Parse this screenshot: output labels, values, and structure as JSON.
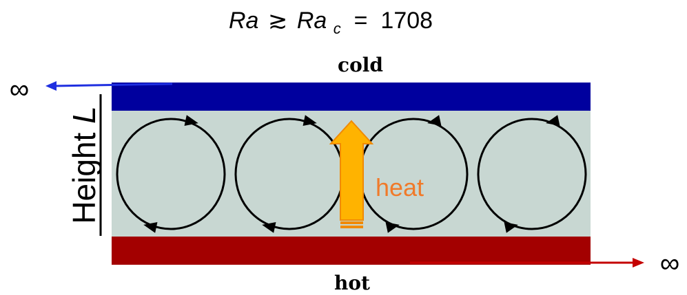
{
  "equation": {
    "lhs": "Ra",
    "relation": "≳",
    "rhs": "Ra",
    "rhs_subscript": "c",
    "equals": " = ",
    "value": "1708"
  },
  "labels": {
    "top": "cold",
    "bottom": "hot",
    "side_prefix": "Height ",
    "side_var": "L",
    "heat": "heat",
    "infinity_left": "∞",
    "infinity_right": "∞"
  },
  "colors": {
    "cold_plate": "#00009e",
    "hot_plate": "#a30000",
    "fluid": "#c8d7d2",
    "heat_arrow": "#ffb300",
    "heat_arrow_edge": "#f08a00",
    "heat_text": "#f07a2a",
    "left_arrow": "#1f2fe0",
    "right_arrow": "#c40000"
  },
  "convection_cells": [
    {
      "name": "cell-1",
      "direction": "clockwise"
    },
    {
      "name": "cell-2",
      "direction": "clockwise"
    },
    {
      "name": "cell-3",
      "direction": "counterclockwise"
    },
    {
      "name": "cell-4",
      "direction": "counterclockwise"
    }
  ]
}
